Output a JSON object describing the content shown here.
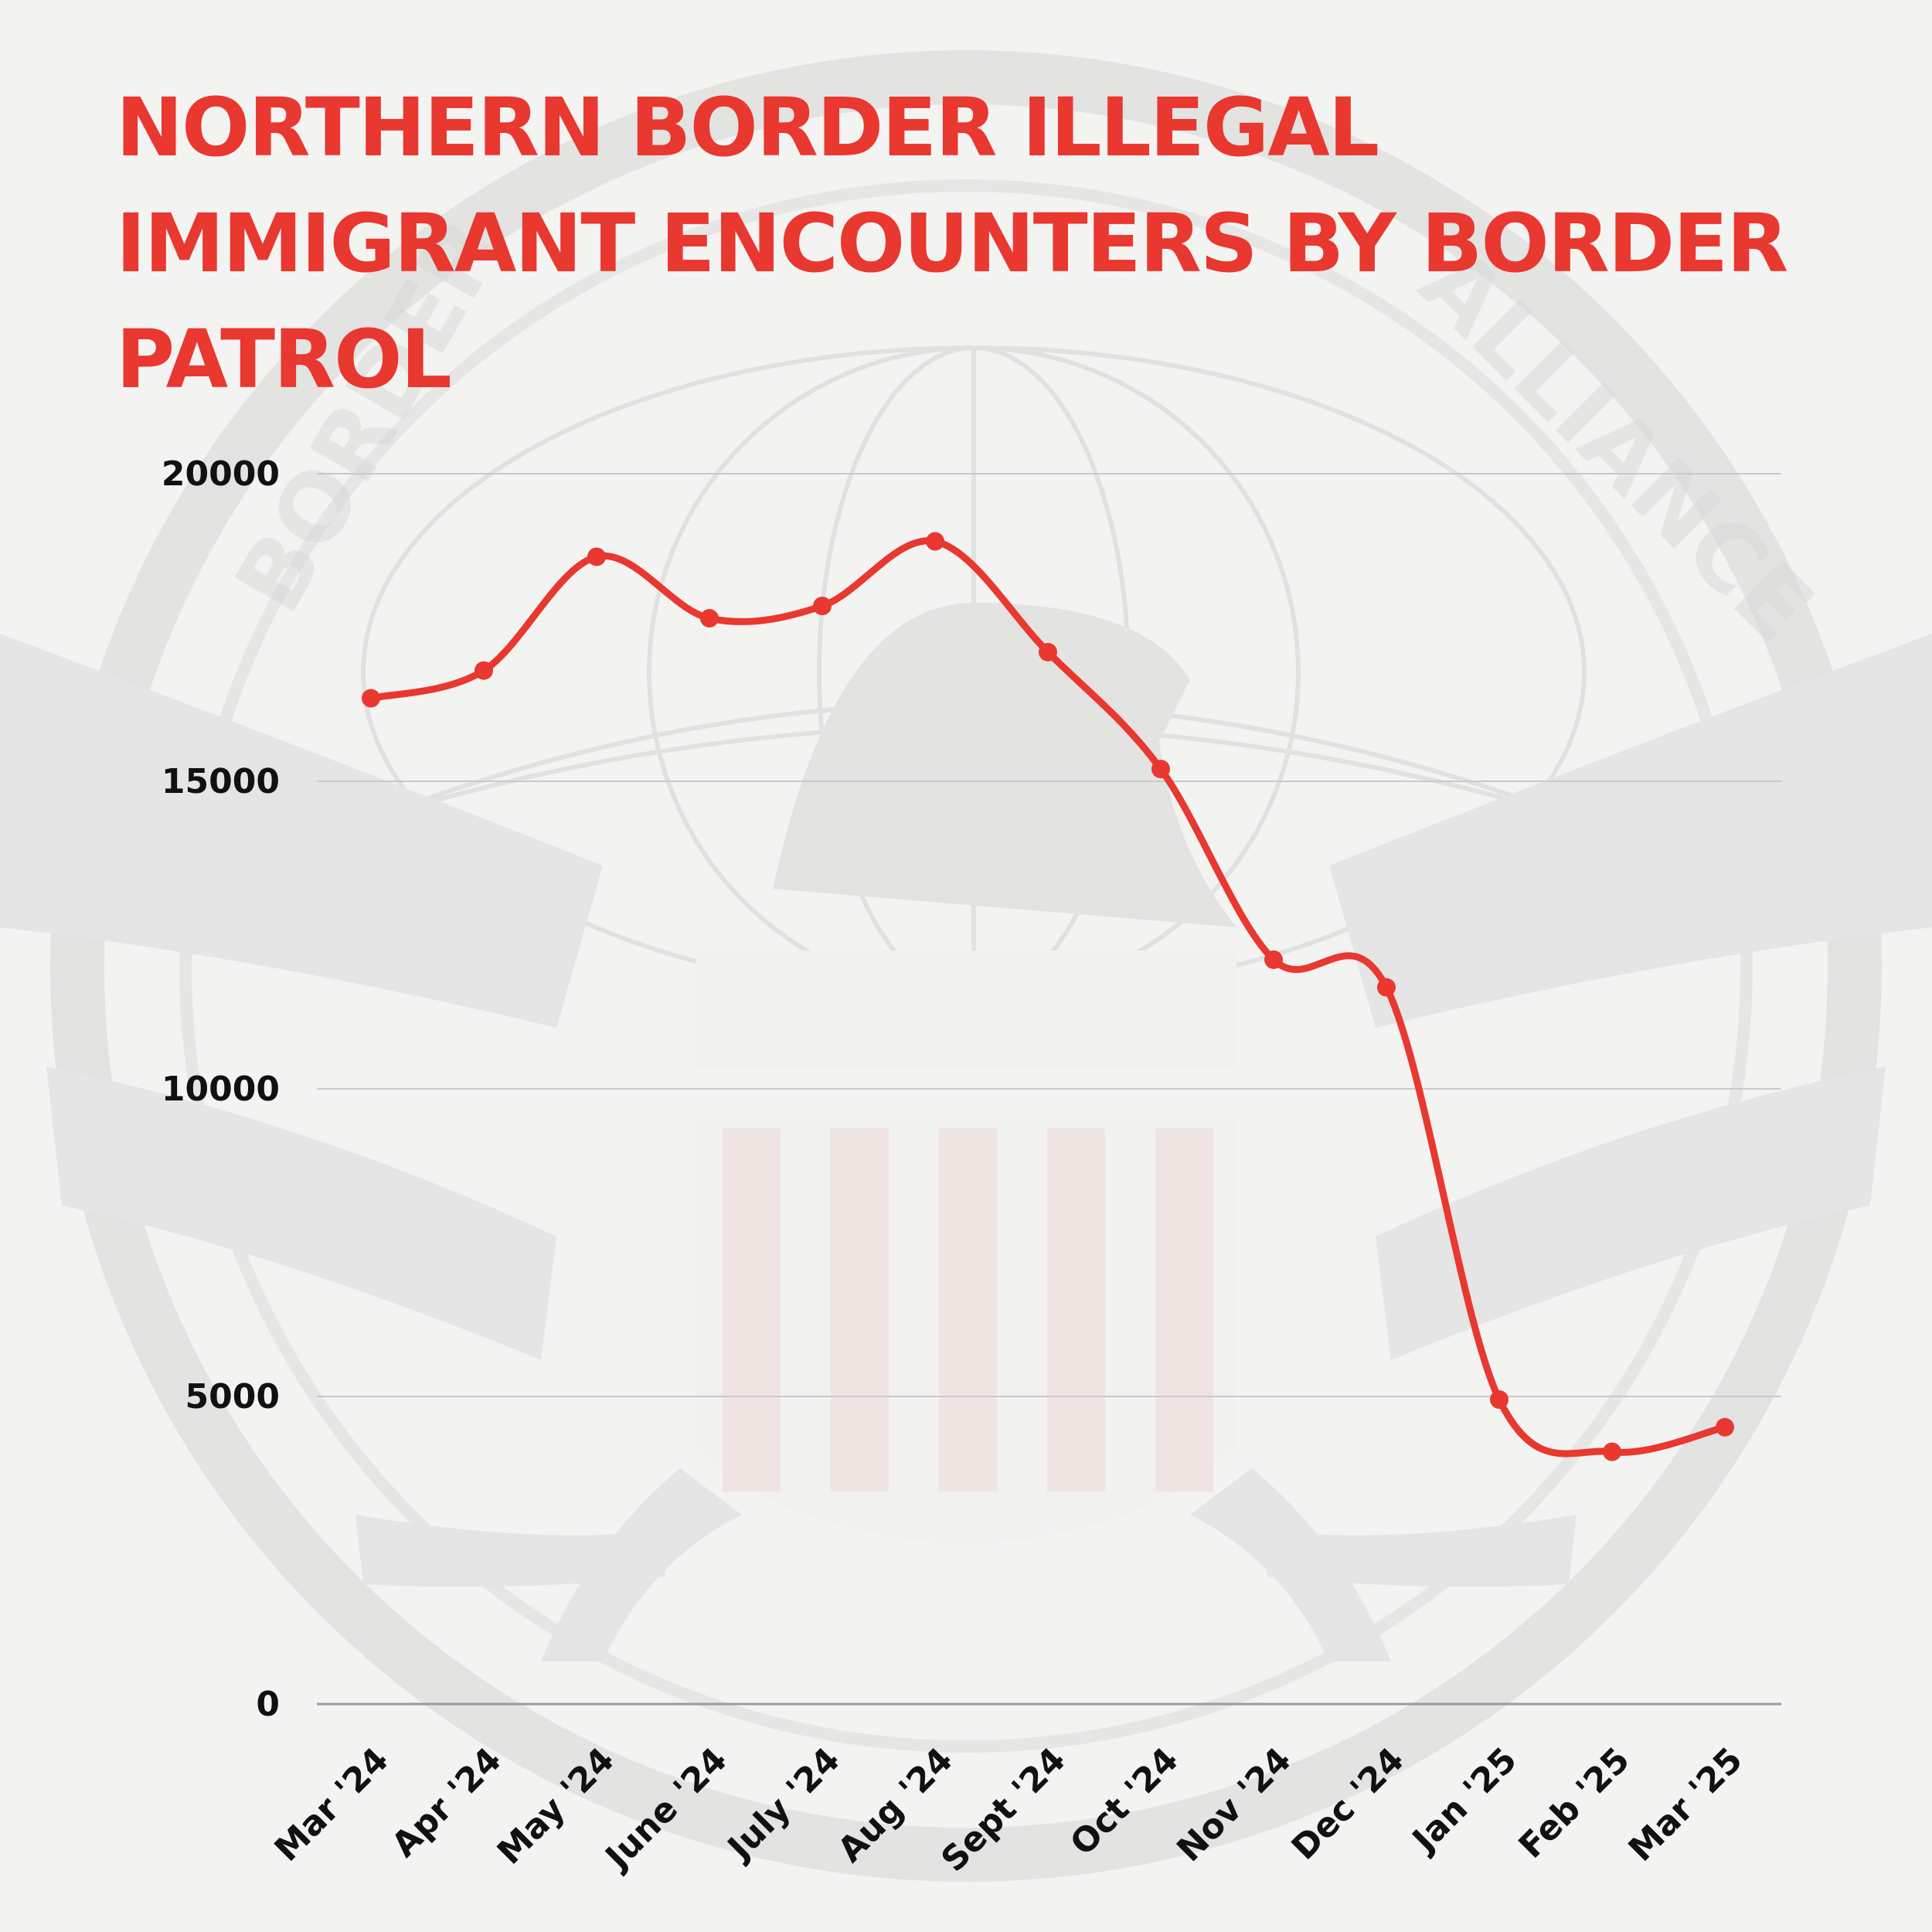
{
  "chart_data": {
    "type": "line",
    "title": "Northern Border Illegal Immigrant Encounters by Border Patrol",
    "categories": [
      "Mar '24",
      "Apr '24",
      "May '24",
      "June '24",
      "July '24",
      "Aug '24",
      "Sept '24",
      "Oct '24",
      "Nov '24",
      "Dec '24",
      "Jan '25",
      "Feb '25",
      "Mar '25"
    ],
    "series": [
      {
        "values": [
          16350,
          16800,
          18650,
          17650,
          17850,
          18900,
          17100,
          15200,
          12100,
          11650,
          4950,
          4100,
          4500
        ]
      }
    ],
    "ylim": [
      0,
      20000
    ],
    "yticks": [
      0,
      5000,
      10000,
      15000,
      20000
    ],
    "xlabel": "",
    "ylabel": "",
    "grid": true,
    "legend": "none",
    "colors": {
      "line": "#e8382f",
      "title": "#e8382f",
      "grid": "#c9c9c9",
      "background": "#f3f3f2"
    }
  },
  "watermark": {
    "text": "BORDER SECURITY ALLIANCE",
    "icon": "eagle-shield-globe-seal-icon"
  }
}
